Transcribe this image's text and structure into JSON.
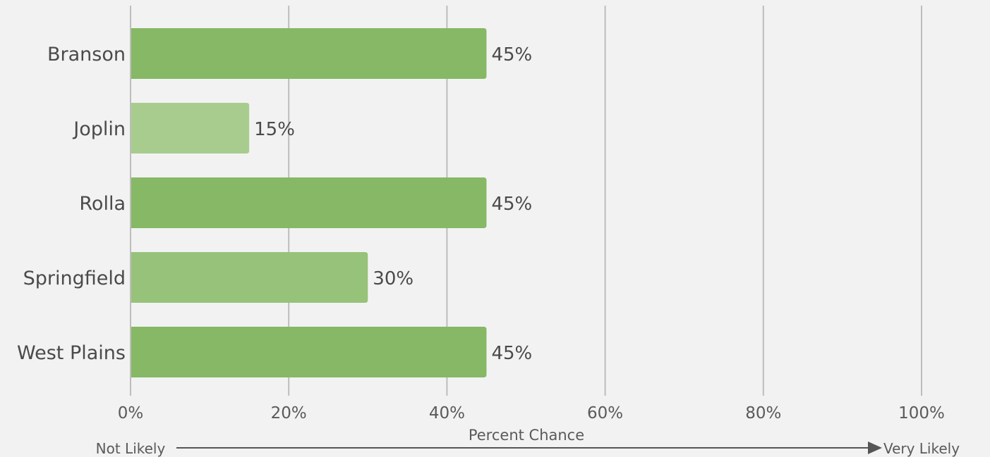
{
  "chart_data": {
    "type": "bar",
    "orientation": "horizontal",
    "categories": [
      "Branson",
      "Joplin",
      "Rolla",
      "Springfield",
      "West Plains"
    ],
    "values": [
      45,
      15,
      45,
      30,
      45
    ],
    "value_labels": [
      "45%",
      "15%",
      "45%",
      "30%",
      "45%"
    ],
    "bar_colors": [
      "#86b865",
      "#a8cc8e",
      "#86b865",
      "#97c27a",
      "#86b865"
    ],
    "xlim": [
      0,
      100
    ],
    "x_ticks": [
      0,
      20,
      40,
      60,
      80,
      100
    ],
    "x_tick_labels": [
      "0%",
      "20%",
      "40%",
      "60%",
      "80%",
      "100%"
    ],
    "xlabel": "Percent Chance",
    "scale_left_label": "Not Likely",
    "scale_right_label": "Very Likely",
    "grid": true,
    "legend": "none"
  }
}
